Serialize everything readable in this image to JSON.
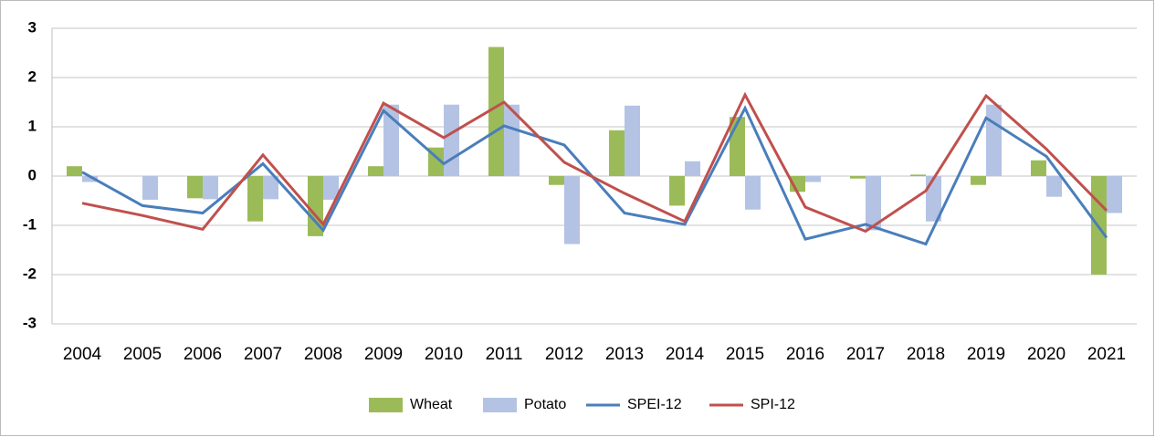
{
  "chart_data": {
    "type": "combo",
    "categories": [
      "2004",
      "2005",
      "2006",
      "2007",
      "2008",
      "2009",
      "2010",
      "2011",
      "2012",
      "2013",
      "2014",
      "2015",
      "2016",
      "2017",
      "2018",
      "2019",
      "2020",
      "2021"
    ],
    "series": [
      {
        "name": "Wheat",
        "type": "bar",
        "color": "#9bbb59",
        "values": [
          0.2,
          0,
          -0.45,
          -0.92,
          -1.22,
          0.2,
          0.58,
          2.62,
          -0.18,
          0.93,
          -0.6,
          1.2,
          -0.32,
          -0.05,
          0.03,
          -0.18,
          0.32,
          -2.0
        ]
      },
      {
        "name": "Potato",
        "type": "bar",
        "color": "#b4c3e4",
        "values": [
          -0.12,
          -0.48,
          -0.47,
          -0.47,
          -0.48,
          1.45,
          1.45,
          1.45,
          -1.38,
          1.43,
          0.3,
          -0.68,
          -0.12,
          -1.1,
          -0.92,
          1.45,
          -0.42,
          -0.75
        ]
      },
      {
        "name": "SPEI-12",
        "type": "line",
        "color": "#4a7ebb",
        "values": [
          0.08,
          -0.6,
          -0.75,
          0.25,
          -1.1,
          1.33,
          0.25,
          1.02,
          0.63,
          -0.75,
          -0.98,
          1.38,
          -1.28,
          -0.98,
          -1.38,
          1.18,
          0.4,
          -1.25
        ]
      },
      {
        "name": "SPI-12",
        "type": "line",
        "color": "#c0504d",
        "values": [
          -0.55,
          -0.8,
          -1.08,
          0.43,
          -0.98,
          1.48,
          0.78,
          1.5,
          0.28,
          -0.35,
          -0.92,
          1.65,
          -0.63,
          -1.12,
          -0.3,
          1.63,
          0.55,
          -0.7
        ]
      }
    ],
    "ylim": [
      -3,
      3
    ],
    "yticks": [
      -3,
      -2,
      -1,
      0,
      1,
      2,
      3
    ],
    "grid": true,
    "legend": "bottom"
  }
}
